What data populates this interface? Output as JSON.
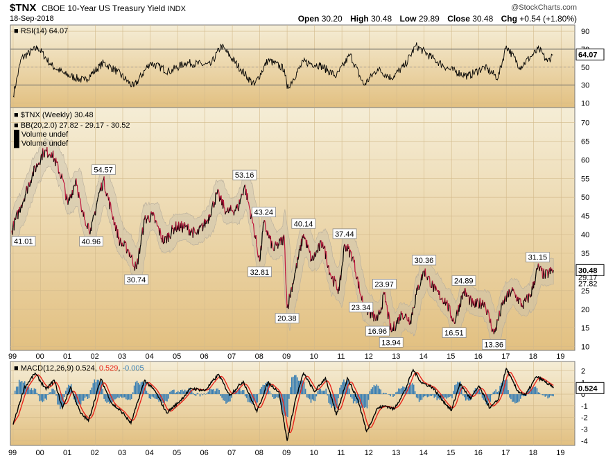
{
  "header": {
    "symbol": "$TNX",
    "description": "CBOE 10-Year US Treasury Yield",
    "exchange": "INDX",
    "date": "18-Sep-2018",
    "brand": "@StockCharts.com",
    "open_label": "Open",
    "open": "30.20",
    "high_label": "High",
    "high": "30.48",
    "low_label": "Low",
    "low": "29.89",
    "close_label": "Close",
    "close": "30.48",
    "chg_label": "Chg",
    "chg": "+0.54 (+1.80%)"
  },
  "colors": {
    "panel_top": "#f5edd6",
    "panel_bottom": "#e2c081",
    "price_line": "#000000",
    "price_down": "#c0143c",
    "bb_band": "#c8c0b0",
    "macd_line": "#000000",
    "signal_line": "#e8261c",
    "histogram": "#3a7fb3"
  },
  "chart_data": [
    {
      "type": "line",
      "title": "RSI(14) 64.07",
      "legend": [
        {
          "label": "RSI(14)",
          "value": "64.07"
        }
      ],
      "yticks": [
        10,
        30,
        50,
        70,
        90
      ],
      "ylim": [
        5,
        97
      ],
      "overbought": 70,
      "oversold": 30,
      "last_value_label": "64.07",
      "keypoints": [
        [
          1999.0,
          18
        ],
        [
          1999.3,
          60
        ],
        [
          1999.9,
          72
        ],
        [
          2000.4,
          52
        ],
        [
          2000.9,
          42
        ],
        [
          2001.6,
          35
        ],
        [
          2002.3,
          55
        ],
        [
          2002.8,
          45
        ],
        [
          2003.4,
          28
        ],
        [
          2004.0,
          55
        ],
        [
          2004.7,
          45
        ],
        [
          2005.3,
          55
        ],
        [
          2006.2,
          52
        ],
        [
          2006.6,
          74
        ],
        [
          2007.3,
          48
        ],
        [
          2007.8,
          30
        ],
        [
          2008.3,
          58
        ],
        [
          2008.9,
          48
        ],
        [
          2009.0,
          26
        ],
        [
          2009.6,
          56
        ],
        [
          2010.2,
          52
        ],
        [
          2010.8,
          40
        ],
        [
          2011.3,
          64
        ],
        [
          2011.8,
          30
        ],
        [
          2012.3,
          48
        ],
        [
          2012.8,
          38
        ],
        [
          2013.3,
          52
        ],
        [
          2013.7,
          74
        ],
        [
          2014.4,
          58
        ],
        [
          2014.9,
          48
        ],
        [
          2015.6,
          40
        ],
        [
          2016.2,
          50
        ],
        [
          2016.7,
          38
        ],
        [
          2017.0,
          74
        ],
        [
          2017.5,
          50
        ],
        [
          2017.9,
          62
        ],
        [
          2018.2,
          70
        ],
        [
          2018.5,
          56
        ],
        [
          2018.7,
          64
        ]
      ]
    },
    {
      "type": "line",
      "title": "$TNX (Weekly) 30.48",
      "legend": [
        {
          "label": "$TNX (Weekly)",
          "value": "30.48"
        },
        {
          "label": "BB(20,2.0)",
          "value": "27.82 - 29.17 - 30.52"
        },
        {
          "label": "Volume undef"
        },
        {
          "label": "Volume undef"
        }
      ],
      "x_ticks": [
        "99",
        "00",
        "01",
        "02",
        "03",
        "04",
        "05",
        "06",
        "07",
        "08",
        "09",
        "10",
        "11",
        "12",
        "13",
        "14",
        "15",
        "16",
        "17",
        "18",
        "19"
      ],
      "xlim": [
        1998.9,
        2019.5
      ],
      "yticks": [
        10,
        15,
        20,
        25,
        30,
        35,
        40,
        45,
        50,
        55,
        60,
        65,
        70
      ],
      "ylim": [
        9,
        74
      ],
      "last_value_label": "30.48",
      "band_labels": [
        "29.17",
        "27.82"
      ],
      "keypoints": [
        [
          1998.95,
          41.01
        ],
        [
          1999.3,
          48
        ],
        [
          1999.7,
          56
        ],
        [
          2000.1,
          62
        ],
        [
          2000.4,
          62
        ],
        [
          2000.8,
          55
        ],
        [
          2001.0,
          48
        ],
        [
          2001.3,
          55
        ],
        [
          2001.5,
          46
        ],
        [
          2001.85,
          40.96
        ],
        [
          2002.1,
          50
        ],
        [
          2002.3,
          54.57
        ],
        [
          2002.6,
          46
        ],
        [
          2002.9,
          38
        ],
        [
          2003.2,
          36
        ],
        [
          2003.5,
          30.74
        ],
        [
          2003.8,
          44
        ],
        [
          2004.1,
          45
        ],
        [
          2004.5,
          38
        ],
        [
          2004.9,
          42
        ],
        [
          2005.3,
          42
        ],
        [
          2005.7,
          40
        ],
        [
          2006.1,
          44
        ],
        [
          2006.45,
          51
        ],
        [
          2006.8,
          46
        ],
        [
          2007.2,
          47
        ],
        [
          2007.45,
          53.16
        ],
        [
          2007.75,
          43
        ],
        [
          2008.0,
          32.81
        ],
        [
          2008.15,
          43.24
        ],
        [
          2008.5,
          36
        ],
        [
          2008.9,
          39
        ],
        [
          2009.0,
          20.38
        ],
        [
          2009.3,
          30
        ],
        [
          2009.6,
          40.14
        ],
        [
          2009.9,
          33
        ],
        [
          2010.3,
          38
        ],
        [
          2010.6,
          29
        ],
        [
          2010.9,
          25
        ],
        [
          2011.1,
          37.44
        ],
        [
          2011.4,
          34
        ],
        [
          2011.7,
          23.34
        ],
        [
          2011.9,
          20
        ],
        [
          2012.3,
          16.96
        ],
        [
          2012.55,
          23.97
        ],
        [
          2012.8,
          13.94
        ],
        [
          2013.2,
          19
        ],
        [
          2013.5,
          17
        ],
        [
          2013.75,
          25
        ],
        [
          2014.0,
          30.36
        ],
        [
          2014.4,
          25
        ],
        [
          2014.8,
          22
        ],
        [
          2015.1,
          16.51
        ],
        [
          2015.45,
          24.89
        ],
        [
          2015.8,
          21
        ],
        [
          2016.2,
          22
        ],
        [
          2016.55,
          13.36
        ],
        [
          2016.9,
          22
        ],
        [
          2017.2,
          25
        ],
        [
          2017.6,
          21
        ],
        [
          2017.9,
          24
        ],
        [
          2018.15,
          31.15
        ],
        [
          2018.4,
          29
        ],
        [
          2018.72,
          30.48
        ]
      ],
      "annotations": [
        {
          "label": "41.01",
          "x": 1998.95,
          "y": 41.01,
          "pos": "below"
        },
        {
          "label": "40.96",
          "x": 2001.85,
          "y": 40.96,
          "pos": "below"
        },
        {
          "label": "54.57",
          "x": 2002.3,
          "y": 54.57,
          "pos": "above"
        },
        {
          "label": "30.74",
          "x": 2003.5,
          "y": 30.74,
          "pos": "below"
        },
        {
          "label": "53.16",
          "x": 2007.45,
          "y": 53.16,
          "pos": "above"
        },
        {
          "label": "43.24",
          "x": 2008.15,
          "y": 43.24,
          "pos": "above"
        },
        {
          "label": "32.81",
          "x": 2008.0,
          "y": 32.81,
          "pos": "below"
        },
        {
          "label": "40.14",
          "x": 2009.6,
          "y": 40.14,
          "pos": "above"
        },
        {
          "label": "20.38",
          "x": 2009.0,
          "y": 20.38,
          "pos": "below"
        },
        {
          "label": "37.44",
          "x": 2011.1,
          "y": 37.44,
          "pos": "above"
        },
        {
          "label": "23.34",
          "x": 2011.7,
          "y": 23.34,
          "pos": "below"
        },
        {
          "label": "23.97",
          "x": 2012.55,
          "y": 23.97,
          "pos": "above"
        },
        {
          "label": "16.96",
          "x": 2012.3,
          "y": 16.96,
          "pos": "below"
        },
        {
          "label": "13.94",
          "x": 2012.8,
          "y": 13.94,
          "pos": "below"
        },
        {
          "label": "30.36",
          "x": 2014.0,
          "y": 30.36,
          "pos": "above"
        },
        {
          "label": "24.89",
          "x": 2015.45,
          "y": 24.89,
          "pos": "above"
        },
        {
          "label": "16.51",
          "x": 2015.1,
          "y": 16.51,
          "pos": "below"
        },
        {
          "label": "13.36",
          "x": 2016.55,
          "y": 13.36,
          "pos": "below"
        },
        {
          "label": "31.15",
          "x": 2018.15,
          "y": 31.15,
          "pos": "above"
        }
      ]
    },
    {
      "type": "line",
      "title": "MACD(12,26,9) 0.524, 0.529, -0.005",
      "legend": [
        {
          "label": "MACD(12,26,9)",
          "value": "0.524"
        },
        {
          "label": "signal",
          "value": "0.529"
        },
        {
          "label": "histogram",
          "value": "-0.005"
        }
      ],
      "yticks": [
        -4,
        -3,
        -2,
        -1,
        0,
        1,
        2
      ],
      "ylim": [
        -4.4,
        2.8
      ],
      "last_value_label": "0.524",
      "keypoints": [
        [
          1999.0,
          -2.6
        ],
        [
          1999.4,
          0.5
        ],
        [
          1999.8,
          1.8
        ],
        [
          2000.2,
          0.4
        ],
        [
          2000.5,
          1.2
        ],
        [
          2000.8,
          -1.2
        ],
        [
          2001.1,
          0.6
        ],
        [
          2001.45,
          -1.6
        ],
        [
          2001.75,
          -2.3
        ],
        [
          2002.2,
          1.3
        ],
        [
          2002.6,
          -0.8
        ],
        [
          2003.0,
          -1.6
        ],
        [
          2003.3,
          -2.5
        ],
        [
          2003.8,
          1.2
        ],
        [
          2004.2,
          0.2
        ],
        [
          2004.6,
          -1.6
        ],
        [
          2005.0,
          -0.8
        ],
        [
          2005.5,
          0.5
        ],
        [
          2006.0,
          0.3
        ],
        [
          2006.5,
          1.7
        ],
        [
          2006.9,
          -0.1
        ],
        [
          2007.4,
          1.1
        ],
        [
          2007.9,
          -1.5
        ],
        [
          2008.3,
          1.0
        ],
        [
          2008.7,
          0.2
        ],
        [
          2009.0,
          -4.0
        ],
        [
          2009.3,
          -0.5
        ],
        [
          2009.6,
          1.8
        ],
        [
          2010.0,
          0.2
        ],
        [
          2010.4,
          1.4
        ],
        [
          2010.8,
          -1.8
        ],
        [
          2011.2,
          1.4
        ],
        [
          2011.6,
          -0.6
        ],
        [
          2011.9,
          -3.2
        ],
        [
          2012.3,
          -1.2
        ],
        [
          2012.6,
          -1.0
        ],
        [
          2012.9,
          -1.3
        ],
        [
          2013.3,
          0.3
        ],
        [
          2013.6,
          2.1
        ],
        [
          2013.9,
          1.0
        ],
        [
          2014.3,
          0.6
        ],
        [
          2014.7,
          -0.6
        ],
        [
          2015.0,
          -1.4
        ],
        [
          2015.3,
          0.9
        ],
        [
          2015.7,
          -0.4
        ],
        [
          2016.0,
          0.7
        ],
        [
          2016.4,
          -1.2
        ],
        [
          2016.7,
          -0.5
        ],
        [
          2017.0,
          2.2
        ],
        [
          2017.4,
          0.3
        ],
        [
          2017.7,
          -0.1
        ],
        [
          2018.1,
          1.5
        ],
        [
          2018.4,
          1.1
        ],
        [
          2018.72,
          0.52
        ]
      ]
    }
  ]
}
